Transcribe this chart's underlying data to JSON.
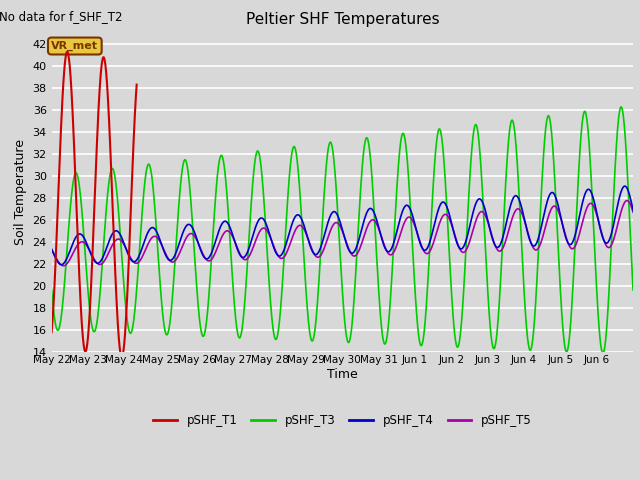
{
  "title": "Peltier SHF Temperatures",
  "xlabel": "Time",
  "ylabel": "Soil Temperature",
  "no_data_text": "No data for f_SHF_T2",
  "annotation_text": "VR_met",
  "ylim": [
    14,
    43
  ],
  "yticks": [
    14,
    16,
    18,
    20,
    22,
    24,
    26,
    28,
    30,
    32,
    34,
    36,
    38,
    40,
    42
  ],
  "bg_color": "#d8d8d8",
  "grid_color": "#ffffff",
  "fig_bg": "#d8d8d8",
  "series": {
    "T1": {
      "color": "#cc0000",
      "label": "pSHF_T1"
    },
    "T3": {
      "color": "#00cc00",
      "label": "pSHF_T3"
    },
    "T4": {
      "color": "#0000cc",
      "label": "pSHF_T4"
    },
    "T5": {
      "color": "#aa00aa",
      "label": "pSHF_T5"
    }
  },
  "xtick_labels": [
    "May 22",
    "May 23",
    "May 24",
    "May 25",
    "May 26",
    "May 27",
    "May 28",
    "May 29",
    "May 30",
    "May 31",
    "Jun 1",
    "Jun 2",
    "Jun 3",
    "Jun 4",
    "Jun 5",
    "Jun 6"
  ],
  "num_days": 16
}
